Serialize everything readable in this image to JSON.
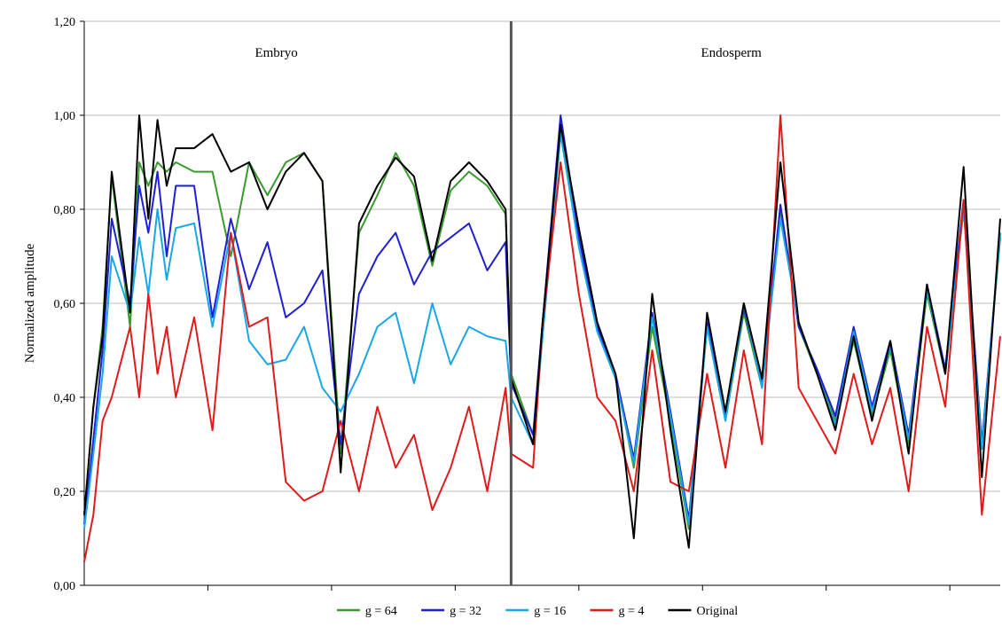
{
  "chart_data": {
    "type": "line",
    "xlabel": "",
    "ylabel": "Normalized amplitude",
    "ylim": [
      0,
      1.2
    ],
    "yticks": [
      "0,00",
      "0,20",
      "0,40",
      "0,60",
      "0,80",
      "1,00",
      "1,20"
    ],
    "grid": true,
    "legend_position": "bottom",
    "annotations": [
      {
        "text": "Embryo",
        "region": "left"
      },
      {
        "text": "Endosperm",
        "region": "right"
      }
    ],
    "divider_x": 0.466,
    "x_note": "x is normalized position along the profile (0 = left edge, 1 = right edge); axis has no printed tick labels",
    "series": [
      {
        "name": "g = 64",
        "color": "#3a9a2f",
        "x": [
          0,
          0.01,
          0.02,
          0.03,
          0.05,
          0.06,
          0.07,
          0.08,
          0.09,
          0.1,
          0.12,
          0.14,
          0.16,
          0.18,
          0.2,
          0.22,
          0.24,
          0.26,
          0.28,
          0.3,
          0.32,
          0.34,
          0.36,
          0.38,
          0.4,
          0.42,
          0.44,
          0.46,
          0.466,
          0.49,
          0.5,
          0.52,
          0.54,
          0.56,
          0.58,
          0.6,
          0.62,
          0.64,
          0.66,
          0.68,
          0.7,
          0.72,
          0.74,
          0.76,
          0.78,
          0.8,
          0.82,
          0.84,
          0.86,
          0.88,
          0.9,
          0.92,
          0.94,
          0.96,
          0.98,
          1.0
        ],
        "values": [
          0.15,
          0.38,
          0.55,
          0.87,
          0.55,
          0.9,
          0.85,
          0.9,
          0.88,
          0.9,
          0.88,
          0.88,
          0.7,
          0.9,
          0.83,
          0.9,
          0.92,
          0.86,
          0.28,
          0.75,
          0.83,
          0.92,
          0.85,
          0.68,
          0.84,
          0.88,
          0.85,
          0.79,
          0.45,
          0.32,
          0.55,
          0.97,
          0.75,
          0.55,
          0.45,
          0.25,
          0.55,
          0.35,
          0.12,
          0.55,
          0.35,
          0.58,
          0.42,
          0.8,
          0.55,
          0.45,
          0.35,
          0.52,
          0.36,
          0.5,
          0.3,
          0.62,
          0.45,
          0.8,
          0.3,
          0.74
        ]
      },
      {
        "name": "g = 32",
        "color": "#1f1fd6",
        "x": [
          0,
          0.01,
          0.02,
          0.03,
          0.05,
          0.06,
          0.07,
          0.08,
          0.09,
          0.1,
          0.12,
          0.14,
          0.16,
          0.18,
          0.2,
          0.22,
          0.24,
          0.26,
          0.28,
          0.3,
          0.32,
          0.34,
          0.36,
          0.38,
          0.4,
          0.42,
          0.44,
          0.46,
          0.466,
          0.49,
          0.5,
          0.52,
          0.54,
          0.56,
          0.58,
          0.6,
          0.62,
          0.64,
          0.66,
          0.68,
          0.7,
          0.72,
          0.74,
          0.76,
          0.78,
          0.8,
          0.82,
          0.84,
          0.86,
          0.88,
          0.9,
          0.92,
          0.94,
          0.96,
          0.98,
          1.0
        ],
        "values": [
          0.13,
          0.31,
          0.5,
          0.78,
          0.6,
          0.85,
          0.75,
          0.88,
          0.7,
          0.85,
          0.85,
          0.57,
          0.78,
          0.63,
          0.73,
          0.57,
          0.6,
          0.67,
          0.3,
          0.62,
          0.7,
          0.75,
          0.64,
          0.71,
          0.74,
          0.77,
          0.67,
          0.73,
          0.43,
          0.32,
          0.55,
          1.0,
          0.74,
          0.55,
          0.45,
          0.27,
          0.58,
          0.37,
          0.14,
          0.56,
          0.36,
          0.59,
          0.43,
          0.81,
          0.55,
          0.46,
          0.36,
          0.55,
          0.38,
          0.52,
          0.32,
          0.64,
          0.46,
          0.82,
          0.3,
          0.75
        ]
      },
      {
        "name": "g = 16",
        "color": "#19a7e6",
        "x": [
          0,
          0.01,
          0.02,
          0.03,
          0.05,
          0.06,
          0.07,
          0.08,
          0.09,
          0.1,
          0.12,
          0.14,
          0.16,
          0.18,
          0.2,
          0.22,
          0.24,
          0.26,
          0.28,
          0.3,
          0.32,
          0.34,
          0.36,
          0.38,
          0.4,
          0.42,
          0.44,
          0.46,
          0.466,
          0.49,
          0.5,
          0.52,
          0.54,
          0.56,
          0.58,
          0.6,
          0.62,
          0.64,
          0.66,
          0.68,
          0.7,
          0.72,
          0.74,
          0.76,
          0.78,
          0.8,
          0.82,
          0.84,
          0.86,
          0.88,
          0.9,
          0.92,
          0.94,
          0.96,
          0.98,
          1.0
        ],
        "values": [
          0.12,
          0.28,
          0.45,
          0.7,
          0.58,
          0.74,
          0.62,
          0.8,
          0.65,
          0.76,
          0.77,
          0.55,
          0.75,
          0.52,
          0.47,
          0.48,
          0.55,
          0.42,
          0.37,
          0.45,
          0.55,
          0.58,
          0.43,
          0.6,
          0.47,
          0.55,
          0.53,
          0.52,
          0.4,
          0.3,
          0.52,
          0.96,
          0.72,
          0.54,
          0.44,
          0.26,
          0.57,
          0.36,
          0.13,
          0.55,
          0.35,
          0.6,
          0.42,
          0.78,
          0.56,
          0.45,
          0.34,
          0.54,
          0.37,
          0.51,
          0.31,
          0.63,
          0.45,
          0.8,
          0.29,
          0.75
        ]
      },
      {
        "name": "g = 4",
        "color": "#e01b1b",
        "x": [
          0,
          0.01,
          0.02,
          0.03,
          0.05,
          0.06,
          0.07,
          0.08,
          0.09,
          0.1,
          0.12,
          0.14,
          0.16,
          0.18,
          0.2,
          0.22,
          0.24,
          0.26,
          0.28,
          0.3,
          0.32,
          0.34,
          0.36,
          0.38,
          0.4,
          0.42,
          0.44,
          0.46,
          0.466,
          0.49,
          0.5,
          0.52,
          0.54,
          0.56,
          0.58,
          0.6,
          0.62,
          0.64,
          0.66,
          0.68,
          0.7,
          0.72,
          0.74,
          0.76,
          0.78,
          0.8,
          0.82,
          0.84,
          0.86,
          0.88,
          0.9,
          0.92,
          0.94,
          0.96,
          0.98,
          1.0
        ],
        "values": [
          0.05,
          0.15,
          0.35,
          0.4,
          0.55,
          0.4,
          0.62,
          0.45,
          0.55,
          0.4,
          0.57,
          0.33,
          0.75,
          0.55,
          0.57,
          0.22,
          0.18,
          0.2,
          0.35,
          0.2,
          0.38,
          0.25,
          0.32,
          0.16,
          0.25,
          0.38,
          0.2,
          0.42,
          0.28,
          0.25,
          0.55,
          0.9,
          0.62,
          0.4,
          0.35,
          0.2,
          0.5,
          0.22,
          0.2,
          0.45,
          0.25,
          0.5,
          0.3,
          1.0,
          0.42,
          0.35,
          0.28,
          0.45,
          0.3,
          0.42,
          0.2,
          0.55,
          0.38,
          0.82,
          0.15,
          0.53
        ]
      },
      {
        "name": "Original",
        "color": "#000000",
        "x": [
          0,
          0.01,
          0.02,
          0.03,
          0.05,
          0.06,
          0.07,
          0.08,
          0.09,
          0.1,
          0.12,
          0.14,
          0.16,
          0.18,
          0.2,
          0.22,
          0.24,
          0.26,
          0.28,
          0.3,
          0.32,
          0.34,
          0.36,
          0.38,
          0.4,
          0.42,
          0.44,
          0.46,
          0.466,
          0.49,
          0.5,
          0.52,
          0.54,
          0.56,
          0.58,
          0.6,
          0.62,
          0.64,
          0.66,
          0.68,
          0.7,
          0.72,
          0.74,
          0.76,
          0.78,
          0.8,
          0.82,
          0.84,
          0.86,
          0.88,
          0.9,
          0.92,
          0.94,
          0.96,
          0.98,
          1.0
        ],
        "values": [
          0.15,
          0.38,
          0.53,
          0.88,
          0.58,
          1.0,
          0.78,
          0.99,
          0.85,
          0.93,
          0.93,
          0.96,
          0.88,
          0.9,
          0.8,
          0.88,
          0.92,
          0.86,
          0.24,
          0.77,
          0.85,
          0.91,
          0.87,
          0.69,
          0.86,
          0.9,
          0.86,
          0.8,
          0.44,
          0.3,
          0.55,
          0.98,
          0.76,
          0.56,
          0.45,
          0.1,
          0.62,
          0.33,
          0.08,
          0.58,
          0.37,
          0.6,
          0.44,
          0.9,
          0.56,
          0.45,
          0.33,
          0.53,
          0.35,
          0.52,
          0.28,
          0.64,
          0.45,
          0.89,
          0.23,
          0.78
        ]
      }
    ]
  }
}
